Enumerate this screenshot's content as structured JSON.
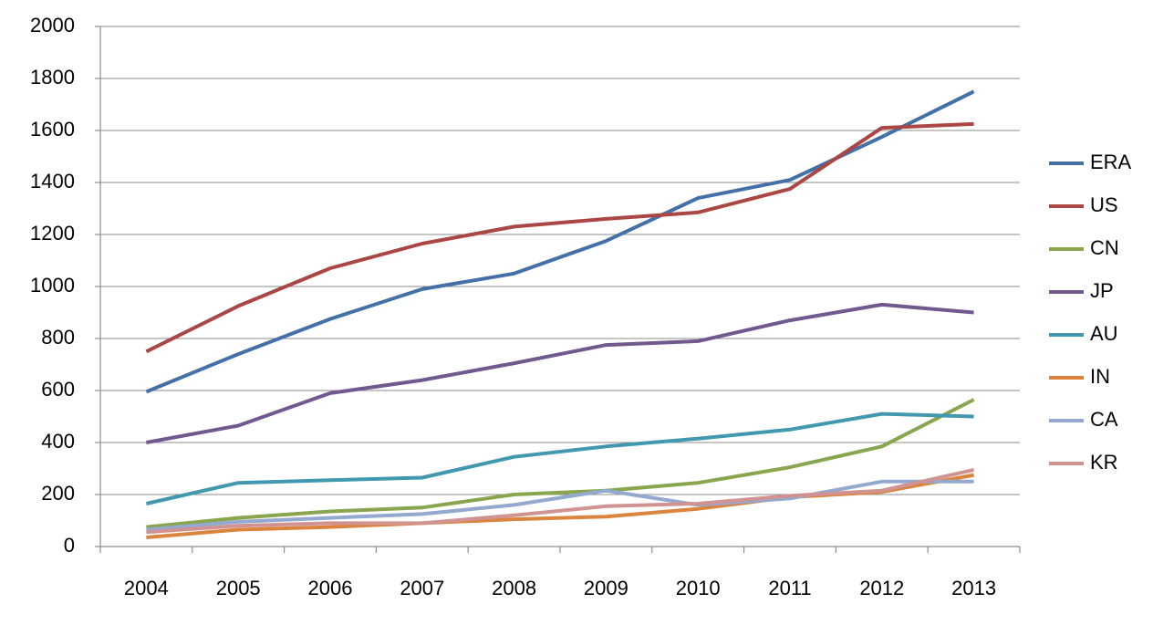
{
  "chart_data": {
    "type": "line",
    "categories": [
      "2004",
      "2005",
      "2006",
      "2007",
      "2008",
      "2009",
      "2010",
      "2011",
      "2012",
      "2013"
    ],
    "series": [
      {
        "name": "ERA",
        "color": "#4470a8",
        "values": [
          595,
          740,
          875,
          990,
          1050,
          1175,
          1340,
          1410,
          1575,
          1750
        ]
      },
      {
        "name": "US",
        "color": "#aa4643",
        "values": [
          750,
          925,
          1070,
          1165,
          1230,
          1260,
          1285,
          1375,
          1610,
          1625
        ]
      },
      {
        "name": "CN",
        "color": "#89a54e",
        "values": [
          75,
          110,
          135,
          150,
          200,
          215,
          245,
          305,
          385,
          565
        ]
      },
      {
        "name": "JP",
        "color": "#71588f",
        "values": [
          400,
          465,
          590,
          640,
          705,
          775,
          790,
          870,
          930,
          900
        ]
      },
      {
        "name": "AU",
        "color": "#4198af",
        "values": [
          165,
          245,
          255,
          265,
          345,
          385,
          415,
          450,
          510,
          500
        ]
      },
      {
        "name": "IN",
        "color": "#db843d",
        "values": [
          35,
          65,
          75,
          90,
          105,
          115,
          145,
          190,
          210,
          275
        ]
      },
      {
        "name": "CA",
        "color": "#93a9cf",
        "values": [
          65,
          95,
          110,
          125,
          160,
          215,
          160,
          185,
          250,
          250
        ]
      },
      {
        "name": "KR",
        "color": "#d19392",
        "values": [
          55,
          80,
          90,
          90,
          120,
          155,
          165,
          195,
          215,
          295
        ]
      }
    ],
    "ylim": [
      0,
      2000
    ],
    "yticks": [
      0,
      200,
      400,
      600,
      800,
      1000,
      1200,
      1400,
      1600,
      1800,
      2000
    ],
    "grid": true,
    "legend": "right"
  }
}
